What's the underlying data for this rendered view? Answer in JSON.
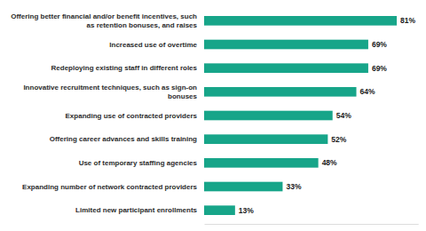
{
  "chart_data": {
    "type": "bar",
    "orientation": "horizontal",
    "categories": [
      "Offering better financial and/or benefit incentives, such as retention bonuses, and raises",
      "Increased use of overtime",
      "Redeploying existing staff in different roles",
      "Innovative recruitment techniques, such as sign-on bonuses",
      "Expanding use of contracted providers",
      "Offering career advances and skills training",
      "Use of temporary staffing agencies",
      "Expanding number of network contracted providers",
      "Limited new participant enrollments"
    ],
    "values": [
      81,
      69,
      69,
      64,
      54,
      52,
      48,
      33,
      13
    ],
    "value_labels": [
      "81%",
      "69%",
      "69%",
      "64%",
      "54%",
      "52%",
      "48%",
      "33%",
      "13%"
    ],
    "color": "#17a589",
    "xlim": [
      0,
      90
    ],
    "grid": false,
    "data_labels": true,
    "tick_labels": false
  }
}
